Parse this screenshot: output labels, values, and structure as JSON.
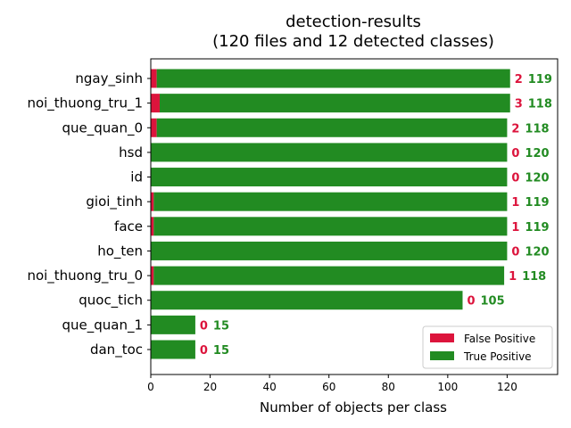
{
  "chart_data": {
    "type": "bar",
    "orientation": "horizontal",
    "stacked": true,
    "title": "detection-results",
    "subtitle": "(120 files and 12 detected classes)",
    "xlabel": "Number of objects per class",
    "ylabel": "",
    "xlim": [
      0,
      137
    ],
    "xticks": [
      0,
      20,
      40,
      60,
      80,
      100,
      120
    ],
    "grid": false,
    "legend_position": "lower-right",
    "categories": [
      "ngay_sinh",
      "noi_thuong_tru_1",
      "que_quan_0",
      "hsd",
      "id",
      "gioi_tinh",
      "face",
      "ho_ten",
      "noi_thuong_tru_0",
      "quoc_tich",
      "que_quan_1",
      "dan_toc"
    ],
    "series": [
      {
        "name": "False Positive",
        "color": "#dc143c",
        "values": [
          2,
          3,
          2,
          0,
          0,
          1,
          1,
          0,
          1,
          0,
          0,
          0
        ]
      },
      {
        "name": "True Positive",
        "color": "#228b22",
        "values": [
          119,
          118,
          118,
          120,
          120,
          119,
          119,
          120,
          118,
          105,
          15,
          15
        ]
      }
    ]
  }
}
